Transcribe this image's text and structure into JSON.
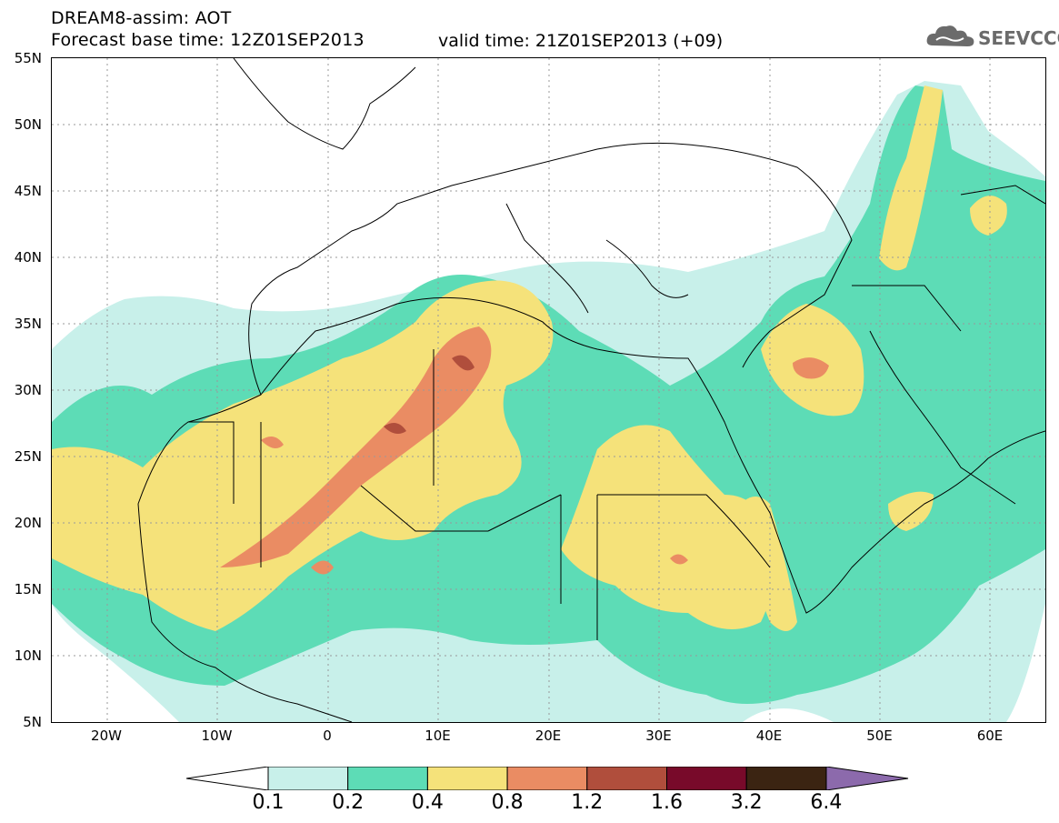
{
  "header": {
    "title_line1": "DREAM8-assim: AOT",
    "title_line2": "Forecast base time: 12Z01SEP2013",
    "valid_time": "valid time: 21Z01SEP2013 (+09)"
  },
  "logo": {
    "text": "SEEVCCC",
    "icon": "cloud-icon"
  },
  "map": {
    "lat_labels": [
      "55N",
      "50N",
      "45N",
      "40N",
      "35N",
      "30N",
      "25N",
      "20N",
      "15N",
      "10N",
      "5N"
    ],
    "lon_labels": [
      "20W",
      "10W",
      "0",
      "10E",
      "20E",
      "30E",
      "40E",
      "50E",
      "60E"
    ],
    "lon_range": [
      -25,
      65
    ],
    "lat_range": [
      5,
      55
    ]
  },
  "legend": {
    "levels": [
      "0.1",
      "0.2",
      "0.4",
      "0.8",
      "1.2",
      "1.6",
      "3.2",
      "6.4"
    ],
    "colors": [
      "#c8f0ea",
      "#5ddcb6",
      "#f5e27a",
      "#ea8c63",
      "#b04e3c",
      "#780a2a",
      "#3b2412",
      "#8c6aac"
    ],
    "under_color": "#ffffff",
    "over_color": "#8c6aac"
  }
}
